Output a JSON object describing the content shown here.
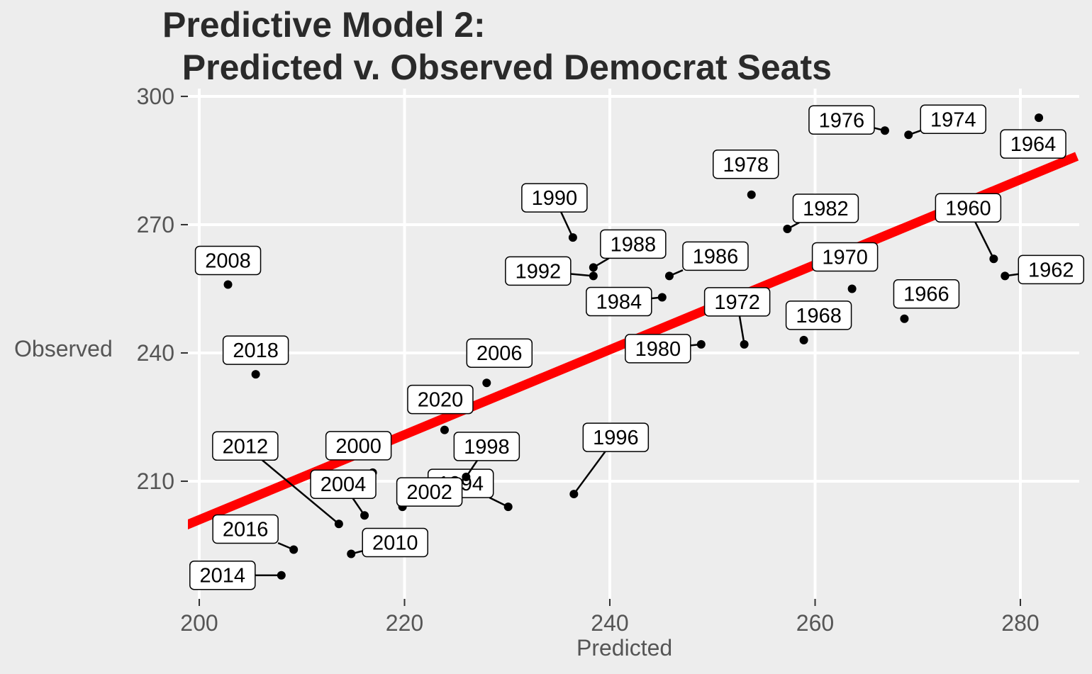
{
  "title_lines": [
    "Predictive Model 2:",
    "  Predicted v. Observed Democrat Seats"
  ],
  "colors": {
    "background": "#ededed",
    "grid": "#ffffff",
    "fit_line": "#ff0000",
    "point": "#000000"
  },
  "chart_data": {
    "type": "scatter",
    "title": "Predictive Model 2:\n  Predicted v. Observed Democrat Seats",
    "xlabel": "Predicted",
    "ylabel": "Observed",
    "xlim": [
      198,
      285.5
    ],
    "ylim": [
      183,
      302
    ],
    "x_ticks": [
      200,
      220,
      240,
      260,
      280
    ],
    "y_ticks": [
      210,
      240,
      270,
      300
    ],
    "grid": true,
    "legend": "none",
    "fit_line": {
      "color": "#ff0000",
      "points": [
        [
          198,
          199
        ],
        [
          285.5,
          286
        ]
      ]
    },
    "points": [
      {
        "label": "1960",
        "x": 277.4,
        "y": 262
      },
      {
        "label": "1962",
        "x": 278.5,
        "y": 258
      },
      {
        "label": "1964",
        "x": 281.8,
        "y": 295
      },
      {
        "label": "1966",
        "x": 268.7,
        "y": 248
      },
      {
        "label": "1968",
        "x": 258.9,
        "y": 243
      },
      {
        "label": "1970",
        "x": 263.6,
        "y": 255
      },
      {
        "label": "1972",
        "x": 253.1,
        "y": 242
      },
      {
        "label": "1974",
        "x": 269.1,
        "y": 291
      },
      {
        "label": "1976",
        "x": 266.8,
        "y": 292
      },
      {
        "label": "1978",
        "x": 253.8,
        "y": 277
      },
      {
        "label": "1980",
        "x": 248.9,
        "y": 242
      },
      {
        "label": "1982",
        "x": 257.3,
        "y": 269
      },
      {
        "label": "1984",
        "x": 245.1,
        "y": 253
      },
      {
        "label": "1986",
        "x": 245.8,
        "y": 258
      },
      {
        "label": "1988",
        "x": 238.4,
        "y": 260
      },
      {
        "label": "1990",
        "x": 236.4,
        "y": 267
      },
      {
        "label": "1992",
        "x": 238.4,
        "y": 258
      },
      {
        "label": "1994",
        "x": 230.1,
        "y": 204
      },
      {
        "label": "1996",
        "x": 236.5,
        "y": 207
      },
      {
        "label": "1998",
        "x": 226.0,
        "y": 211
      },
      {
        "label": "2000",
        "x": 216.9,
        "y": 212
      },
      {
        "label": "2002",
        "x": 219.8,
        "y": 204
      },
      {
        "label": "2004",
        "x": 216.1,
        "y": 202
      },
      {
        "label": "2006",
        "x": 228.0,
        "y": 233
      },
      {
        "label": "2008",
        "x": 202.8,
        "y": 256
      },
      {
        "label": "2010",
        "x": 214.8,
        "y": 193
      },
      {
        "label": "2012",
        "x": 213.6,
        "y": 200
      },
      {
        "label": "2014",
        "x": 208.0,
        "y": 188
      },
      {
        "label": "2016",
        "x": 209.2,
        "y": 194
      },
      {
        "label": "2018",
        "x": 205.5,
        "y": 235
      },
      {
        "label": "2020",
        "x": 223.9,
        "y": 222
      }
    ]
  }
}
